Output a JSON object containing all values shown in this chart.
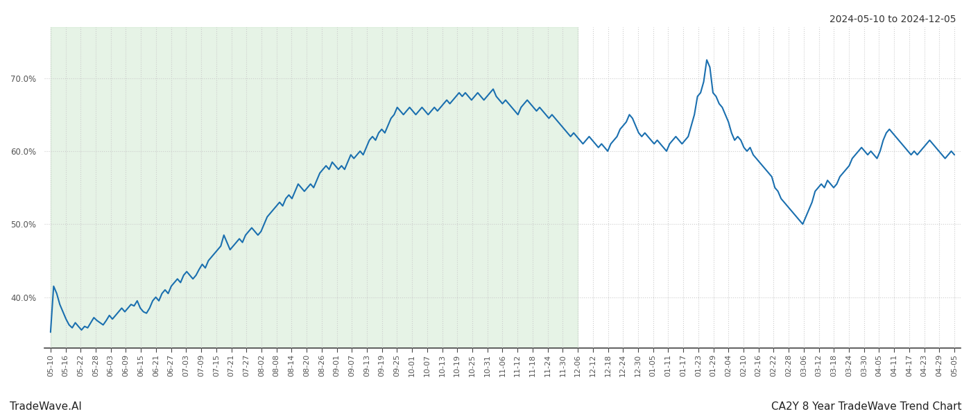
{
  "title_right": "2024-05-10 to 2024-12-05",
  "footer_left": "TradeWave.AI",
  "footer_right": "CA2Y 8 Year TradeWave Trend Chart",
  "line_color": "#1a6faf",
  "line_width": 1.5,
  "shade_color": "#c8e6c9",
  "shade_alpha": 0.45,
  "ylim": [
    33,
    77
  ],
  "yticks": [
    40.0,
    50.0,
    60.0,
    70.0
  ],
  "background_color": "#ffffff",
  "grid_color": "#cccccc",
  "tick_label_color": "#555555",
  "tick_label_size": 8.5,
  "x_labels": [
    "05-10",
    "05-16",
    "05-22",
    "05-28",
    "06-03",
    "06-09",
    "06-15",
    "06-21",
    "06-27",
    "07-03",
    "07-09",
    "07-15",
    "07-21",
    "07-27",
    "08-02",
    "08-08",
    "08-14",
    "08-20",
    "08-26",
    "09-01",
    "09-07",
    "09-13",
    "09-19",
    "09-25",
    "10-01",
    "10-07",
    "10-13",
    "10-19",
    "10-25",
    "10-31",
    "11-06",
    "11-12",
    "11-18",
    "11-24",
    "11-30",
    "12-06",
    "12-12",
    "12-18",
    "12-24",
    "12-30",
    "01-05",
    "01-11",
    "01-17",
    "01-23",
    "01-29",
    "02-04",
    "02-10",
    "02-16",
    "02-22",
    "02-28",
    "03-06",
    "03-12",
    "03-18",
    "03-24",
    "03-30",
    "04-05",
    "04-11",
    "04-17",
    "04-23",
    "04-29",
    "05-05"
  ],
  "shade_start_label": "05-10",
  "shade_end_label": "12-06",
  "values": [
    35.2,
    41.5,
    40.5,
    39.0,
    38.0,
    37.0,
    36.2,
    35.8,
    36.5,
    36.0,
    35.5,
    36.0,
    35.8,
    36.5,
    37.2,
    36.8,
    36.5,
    36.2,
    36.8,
    37.5,
    37.0,
    37.5,
    38.0,
    38.5,
    38.0,
    38.5,
    39.0,
    38.8,
    39.5,
    38.5,
    38.0,
    37.8,
    38.5,
    39.5,
    40.0,
    39.5,
    40.5,
    41.0,
    40.5,
    41.5,
    42.0,
    42.5,
    42.0,
    43.0,
    43.5,
    43.0,
    42.5,
    43.0,
    43.8,
    44.5,
    44.0,
    45.0,
    45.5,
    46.0,
    46.5,
    47.0,
    48.5,
    47.5,
    46.5,
    47.0,
    47.5,
    48.0,
    47.5,
    48.5,
    49.0,
    49.5,
    49.0,
    48.5,
    49.0,
    50.0,
    51.0,
    51.5,
    52.0,
    52.5,
    53.0,
    52.5,
    53.5,
    54.0,
    53.5,
    54.5,
    55.5,
    55.0,
    54.5,
    55.0,
    55.5,
    55.0,
    56.0,
    57.0,
    57.5,
    58.0,
    57.5,
    58.5,
    58.0,
    57.5,
    58.0,
    57.5,
    58.5,
    59.5,
    59.0,
    59.5,
    60.0,
    59.5,
    60.5,
    61.5,
    62.0,
    61.5,
    62.5,
    63.0,
    62.5,
    63.5,
    64.5,
    65.0,
    66.0,
    65.5,
    65.0,
    65.5,
    66.0,
    65.5,
    65.0,
    65.5,
    66.0,
    65.5,
    65.0,
    65.5,
    66.0,
    65.5,
    66.0,
    66.5,
    67.0,
    66.5,
    67.0,
    67.5,
    68.0,
    67.5,
    68.0,
    67.5,
    67.0,
    67.5,
    68.0,
    67.5,
    67.0,
    67.5,
    68.0,
    68.5,
    67.5,
    67.0,
    66.5,
    67.0,
    66.5,
    66.0,
    65.5,
    65.0,
    66.0,
    66.5,
    67.0,
    66.5,
    66.0,
    65.5,
    66.0,
    65.5,
    65.0,
    64.5,
    65.0,
    64.5,
    64.0,
    63.5,
    63.0,
    62.5,
    62.0,
    62.5,
    62.0,
    61.5,
    61.0,
    61.5,
    62.0,
    61.5,
    61.0,
    60.5,
    61.0,
    60.5,
    60.0,
    61.0,
    61.5,
    62.0,
    63.0,
    63.5,
    64.0,
    65.0,
    64.5,
    63.5,
    62.5,
    62.0,
    62.5,
    62.0,
    61.5,
    61.0,
    61.5,
    61.0,
    60.5,
    60.0,
    61.0,
    61.5,
    62.0,
    61.5,
    61.0,
    61.5,
    62.0,
    63.5,
    65.0,
    67.5,
    68.0,
    69.5,
    72.5,
    71.5,
    68.0,
    67.5,
    66.5,
    66.0,
    65.0,
    64.0,
    62.5,
    61.5,
    62.0,
    61.5,
    60.5,
    60.0,
    60.5,
    59.5,
    59.0,
    58.5,
    58.0,
    57.5,
    57.0,
    56.5,
    55.0,
    54.5,
    53.5,
    53.0,
    52.5,
    52.0,
    51.5,
    51.0,
    50.5,
    50.0,
    51.0,
    52.0,
    53.0,
    54.5,
    55.0,
    55.5,
    55.0,
    56.0,
    55.5,
    55.0,
    55.5,
    56.5,
    57.0,
    57.5,
    58.0,
    59.0,
    59.5,
    60.0,
    60.5,
    60.0,
    59.5,
    60.0,
    59.5,
    59.0,
    60.0,
    61.5,
    62.5,
    63.0,
    62.5,
    62.0,
    61.5,
    61.0,
    60.5,
    60.0,
    59.5,
    60.0,
    59.5,
    60.0,
    60.5,
    61.0,
    61.5,
    61.0,
    60.5,
    60.0,
    59.5,
    59.0,
    59.5,
    60.0,
    59.5
  ]
}
